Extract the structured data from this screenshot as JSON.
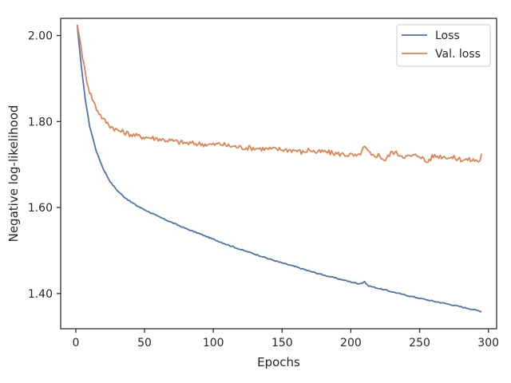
{
  "chart_data": {
    "type": "line",
    "xlabel": "Epochs",
    "ylabel": "Negative log-likelihood",
    "xlim": [
      -11,
      306
    ],
    "ylim": [
      1.318,
      2.04
    ],
    "xticks": [
      0,
      50,
      100,
      150,
      200,
      250,
      300
    ],
    "yticks": [
      1.4,
      1.6,
      1.8,
      2.0
    ],
    "xtick_labels": [
      "0",
      "50",
      "100",
      "150",
      "200",
      "250",
      "300"
    ],
    "ytick_labels": [
      "1.40",
      "1.60",
      "1.80",
      "2.00"
    ],
    "grid": false,
    "legend_position": "top-right",
    "series": [
      {
        "name": "Loss",
        "color": "#4c72b0",
        "x": [
          1,
          3,
          5,
          7,
          10,
          15,
          20,
          25,
          30,
          35,
          40,
          45,
          50,
          55,
          60,
          70,
          80,
          90,
          100,
          110,
          120,
          130,
          140,
          150,
          160,
          170,
          180,
          190,
          200,
          205,
          208,
          210,
          212,
          215,
          220,
          230,
          240,
          250,
          260,
          270,
          280,
          290,
          295
        ],
        "y": [
          2.025,
          1.96,
          1.9,
          1.85,
          1.79,
          1.73,
          1.69,
          1.66,
          1.64,
          1.625,
          1.613,
          1.603,
          1.595,
          1.587,
          1.579,
          1.565,
          1.551,
          1.539,
          1.526,
          1.514,
          1.502,
          1.492,
          1.481,
          1.471,
          1.462,
          1.452,
          1.443,
          1.435,
          1.427,
          1.423,
          1.424,
          1.428,
          1.419,
          1.416,
          1.412,
          1.404,
          1.396,
          1.389,
          1.382,
          1.376,
          1.369,
          1.362,
          1.358
        ]
      },
      {
        "name": "Val. loss",
        "color": "#dd8452",
        "x": [
          1,
          3,
          5,
          7,
          10,
          15,
          20,
          25,
          30,
          35,
          40,
          45,
          50,
          55,
          60,
          65,
          70,
          75,
          80,
          90,
          100,
          105,
          110,
          115,
          120,
          130,
          140,
          150,
          160,
          165,
          170,
          175,
          180,
          190,
          200,
          205,
          210,
          215,
          220,
          225,
          230,
          240,
          250,
          255,
          260,
          270,
          280,
          290,
          294,
          295
        ],
        "y": [
          2.025,
          1.99,
          1.95,
          1.91,
          1.87,
          1.83,
          1.805,
          1.79,
          1.78,
          1.775,
          1.77,
          1.766,
          1.764,
          1.762,
          1.76,
          1.757,
          1.755,
          1.752,
          1.75,
          1.748,
          1.746,
          1.748,
          1.744,
          1.742,
          1.74,
          1.738,
          1.736,
          1.735,
          1.733,
          1.728,
          1.735,
          1.728,
          1.73,
          1.725,
          1.722,
          1.718,
          1.74,
          1.72,
          1.722,
          1.71,
          1.73,
          1.718,
          1.722,
          1.705,
          1.72,
          1.718,
          1.712,
          1.71,
          1.708,
          1.725
        ]
      }
    ]
  }
}
